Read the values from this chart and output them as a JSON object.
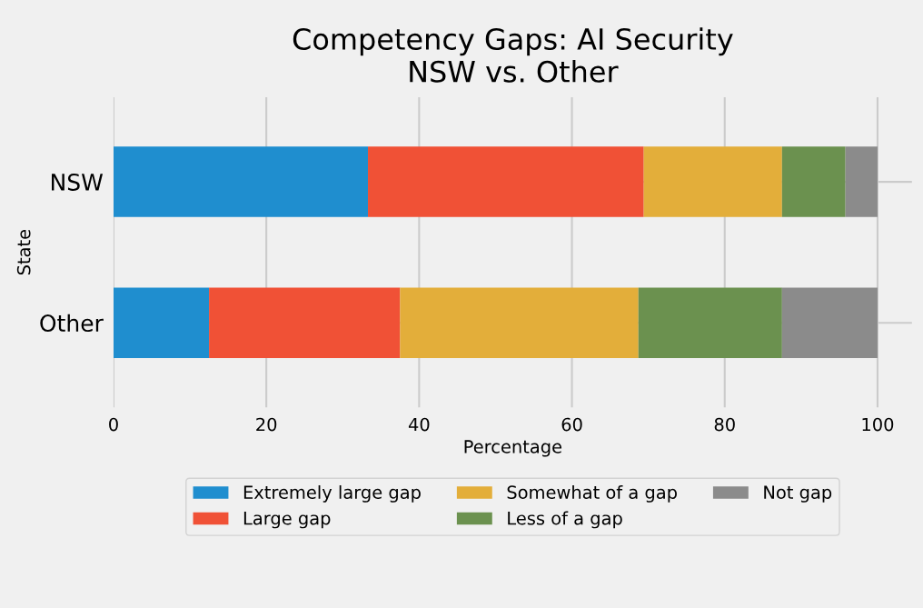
{
  "chart_data": {
    "type": "bar",
    "orientation": "horizontal",
    "stacked": true,
    "title": "Competency Gaps: AI Security\nNSW vs. Other",
    "xlabel": "Percentage",
    "ylabel": "State",
    "categories": [
      "NSW",
      "Other"
    ],
    "series": [
      {
        "name": "Extremely large gap",
        "color": "#1f8ecf",
        "values": [
          33.3,
          12.5
        ]
      },
      {
        "name": "Large gap",
        "color": "#f05136",
        "values": [
          36.1,
          25.0
        ]
      },
      {
        "name": "Somewhat of a gap",
        "color": "#e3ae3a",
        "values": [
          18.1,
          31.2
        ]
      },
      {
        "name": "Less of a gap",
        "color": "#6b914f",
        "values": [
          8.3,
          18.8
        ]
      },
      {
        "name": "Not gap",
        "color": "#8b8b8b",
        "values": [
          4.2,
          12.5
        ]
      }
    ],
    "xlim": [
      0,
      104.5
    ],
    "xticks": [
      0,
      20,
      40,
      60,
      80,
      100
    ],
    "grid": true,
    "legend": "bottom"
  }
}
